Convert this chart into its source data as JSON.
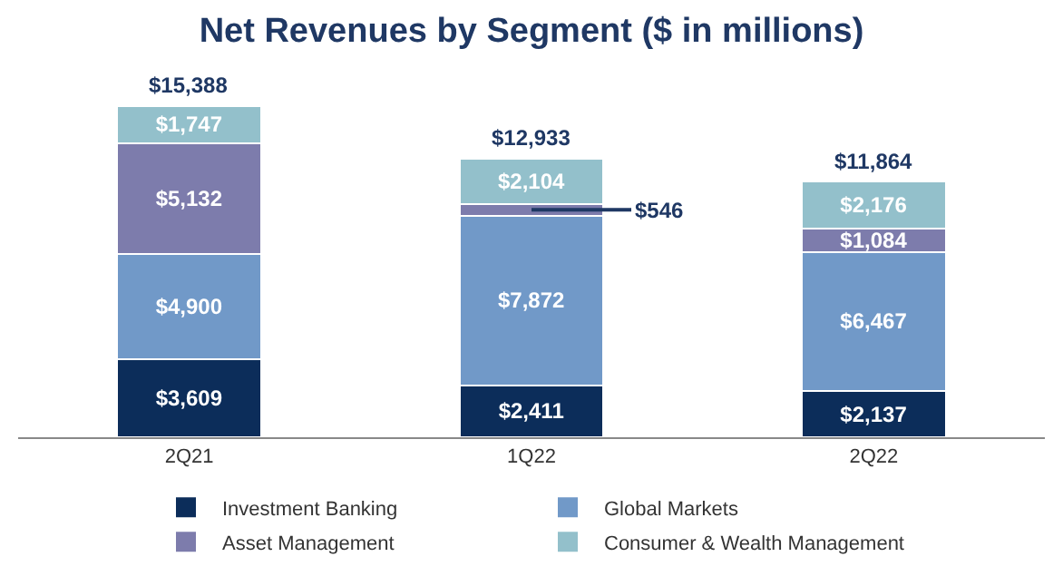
{
  "chart_data": {
    "type": "bar",
    "title": "Net Revenues by Segment ($ in millions)",
    "stacked": true,
    "categories": [
      "2Q21",
      "1Q22",
      "2Q22"
    ],
    "series": [
      {
        "name": "Investment Banking",
        "color": "#0c2d5a",
        "values": [
          3609,
          2411,
          2137
        ],
        "value_labels": [
          "$3,609",
          "$2,411",
          "$2,137"
        ]
      },
      {
        "name": "Global Markets",
        "color": "#7199c8",
        "values": [
          4900,
          7872,
          6467
        ],
        "value_labels": [
          "$4,900",
          "$7,872",
          "$6,467"
        ]
      },
      {
        "name": "Asset Management",
        "color": "#7d7cac",
        "values": [
          5132,
          546,
          1084
        ],
        "value_labels": [
          "$5,132",
          "$546",
          "$1,084"
        ]
      },
      {
        "name": "Consumer & Wealth Management",
        "color": "#93c0cb",
        "values": [
          1747,
          2104,
          2176
        ],
        "value_labels": [
          "$1,747",
          "$2,104",
          "$2,176"
        ]
      }
    ],
    "totals": [
      "$15,388",
      "$12,933",
      "$11,864"
    ],
    "legend": "bottom"
  }
}
